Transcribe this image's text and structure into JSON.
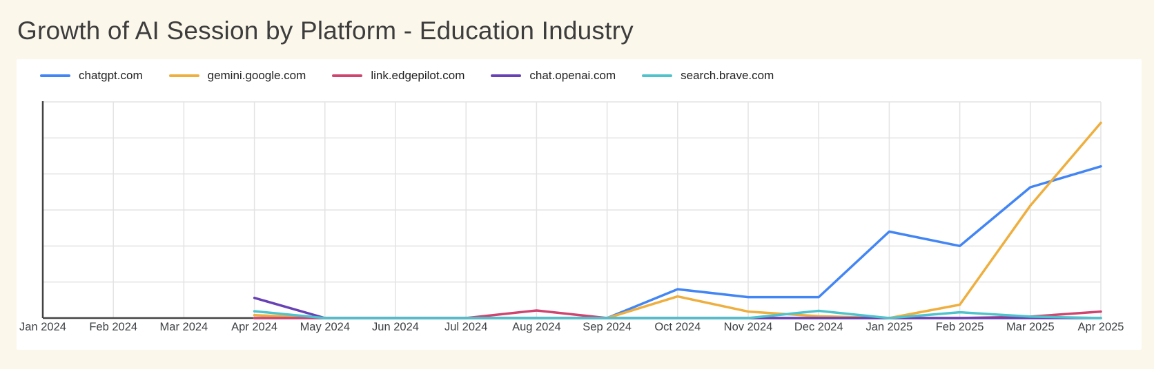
{
  "title": "Growth of AI Session by Platform - Education Industry",
  "colors": {
    "page_background": "#fbf7eb",
    "card_background": "#ffffff",
    "gridline": "#e3e3e3",
    "axis_line": "#424242",
    "axis_label_text": "#3c4043",
    "title_text": "#3d3d3d"
  },
  "legend": {
    "items": [
      {
        "label": "chatgpt.com",
        "color": "#4285f4"
      },
      {
        "label": "gemini.google.com",
        "color": "#eeaf3f"
      },
      {
        "label": "link.edgepilot.com",
        "color": "#ce4570"
      },
      {
        "label": "chat.openai.com",
        "color": "#6741b5"
      },
      {
        "label": "search.brave.com",
        "color": "#4fc3cb"
      }
    ]
  },
  "chart_data": {
    "type": "line",
    "title": "Growth of AI Session by Platform - Education Industry",
    "xlabel": "",
    "ylabel": "",
    "categories": [
      "Jan 2024",
      "Feb 2024",
      "Mar 2024",
      "Apr 2024",
      "May 2024",
      "Jun 2024",
      "Jul 2024",
      "Aug 2024",
      "Sep 2024",
      "Oct 2024",
      "Nov 2024",
      "Dec 2024",
      "Jan 2025",
      "Feb 2025",
      "Mar 2025",
      "Apr 2025"
    ],
    "y_axis": {
      "labels_visible": false,
      "units": "relative gridline units (no y tick labels shown)",
      "ylim": [
        0,
        6
      ],
      "gridline_interval": 1
    },
    "grid": true,
    "legend_position": "top",
    "note": "All series have no plotted data before Apr 2024; lines begin at Apr 2024. Values estimated against unlabeled gridlines (1 unit = one gridline interval).",
    "series": [
      {
        "name": "chatgpt.com",
        "color": "#4285f4",
        "values": [
          null,
          null,
          null,
          0,
          0,
          0,
          0,
          0,
          0,
          0.8,
          0.58,
          0.58,
          2.4,
          2.0,
          3.63,
          4.21
        ]
      },
      {
        "name": "gemini.google.com",
        "color": "#eeaf3f",
        "values": [
          null,
          null,
          null,
          0.08,
          0,
          0,
          0,
          0,
          0,
          0.6,
          0.18,
          0.05,
          0,
          0.37,
          3.12,
          5.42
        ]
      },
      {
        "name": "link.edgepilot.com",
        "color": "#ce4570",
        "values": [
          null,
          null,
          null,
          0,
          0,
          0,
          0,
          0.21,
          0,
          0,
          0,
          0,
          0,
          0,
          0.04,
          0.18
        ]
      },
      {
        "name": "chat.openai.com",
        "color": "#6741b5",
        "values": [
          null,
          null,
          null,
          0.56,
          0,
          0,
          0,
          0,
          0,
          0,
          0,
          0,
          0,
          0,
          0,
          0
        ]
      },
      {
        "name": "search.brave.com",
        "color": "#4fc3cb",
        "values": [
          null,
          null,
          null,
          0.19,
          0,
          0,
          0,
          0,
          0,
          0,
          0,
          0.2,
          0,
          0.16,
          0.04,
          0
        ]
      }
    ]
  }
}
